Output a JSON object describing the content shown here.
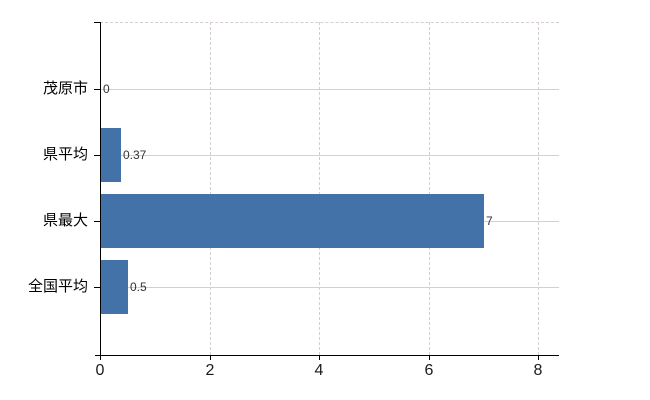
{
  "chart_data": {
    "type": "bar",
    "orientation": "horizontal",
    "title": "",
    "xlabel": "",
    "ylabel": "",
    "categories": [
      "茂原市",
      "県平均",
      "県最大",
      "全国平均"
    ],
    "values": [
      0,
      0.37,
      7,
      0.5
    ],
    "value_labels": [
      "0",
      "0.37",
      "7",
      "0.5"
    ],
    "x_ticks": [
      0,
      2,
      4,
      6,
      8
    ],
    "x_tick_labels": [
      "0",
      "2",
      "4",
      "6",
      "8"
    ],
    "xlim": [
      0,
      8.4
    ],
    "grid": true,
    "legend": false,
    "gridline_style": {
      "value_axis": "dashed",
      "category_axis": "solid"
    },
    "colors": {
      "bar": "#4272a7",
      "category_gridline": "#ccd5cc",
      "value_gridline": "#d7ccd3",
      "axis": "#000000",
      "category_label": "#000000",
      "tick_label": "#1a1a1a",
      "value_label": "#333333",
      "background": "#ffffff"
    }
  }
}
